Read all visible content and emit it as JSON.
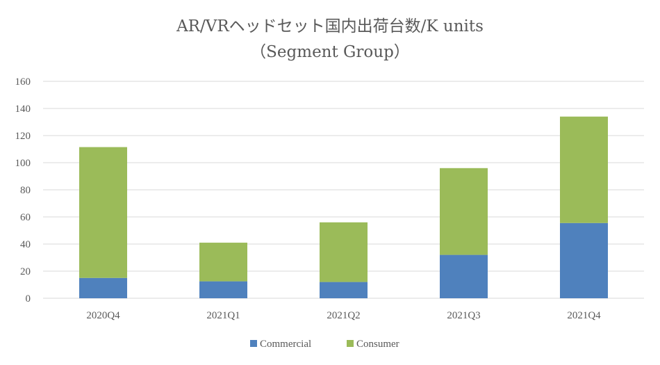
{
  "chart_data": {
    "type": "bar",
    "stacked": true,
    "title": "AR/VRヘッドセット国内出荷台数/K units",
    "subtitle": "（Segment Group）",
    "categories": [
      "2020Q4",
      "2021Q1",
      "2021Q2",
      "2021Q3",
      "2021Q4"
    ],
    "series": [
      {
        "name": "Commercial",
        "color": "#4f81bd",
        "values": [
          15,
          12.5,
          12,
          32,
          55.5
        ]
      },
      {
        "name": "Consumer",
        "color": "#9bbb59",
        "values": [
          96.5,
          28.5,
          44,
          64,
          78.5
        ]
      }
    ],
    "ylim": [
      0,
      160
    ],
    "yticks": [
      0,
      20,
      40,
      60,
      80,
      100,
      120,
      140,
      160
    ],
    "grid": true,
    "legend": "bottom"
  }
}
